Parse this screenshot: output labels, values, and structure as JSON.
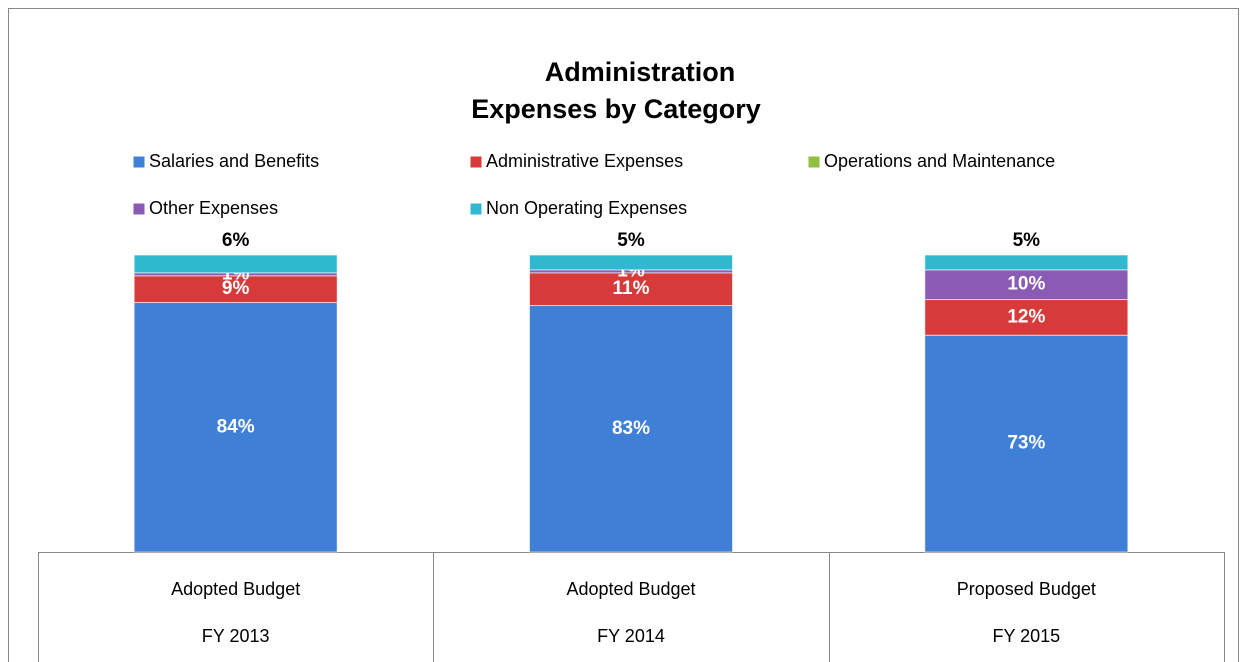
{
  "chart_data": {
    "type": "stacked-bar",
    "title": [
      "Administration",
      "Expenses by Category"
    ],
    "categories": [
      [
        "Adopted Budget",
        "FY 2013"
      ],
      [
        "Adopted Budget",
        "FY 2014"
      ],
      [
        "Proposed Budget",
        "FY 2015"
      ]
    ],
    "ylim": [
      0,
      100
    ],
    "series": [
      {
        "name": "Salaries and Benefits",
        "color": "#3f7fd6",
        "values": [
          84,
          83,
          73
        ],
        "value_labels": [
          "84%",
          "83%",
          "73%"
        ]
      },
      {
        "name": "Administrative Expenses",
        "color": "#d63a3a",
        "values": [
          9,
          11,
          12
        ],
        "value_labels": [
          "9%",
          "11%",
          "12%"
        ]
      },
      {
        "name": "Operations and Maintenance",
        "color": "#8fc13f",
        "values": [
          0,
          0,
          0
        ]
      },
      {
        "name": "Other Expenses",
        "color": "#8a5bb5",
        "values": [
          1,
          1,
          10
        ],
        "value_labels": [
          "1%",
          "1%",
          "10%"
        ]
      },
      {
        "name": "Non Operating Expenses",
        "color": "#2fb9d0",
        "values": [
          6,
          5,
          5
        ],
        "value_labels": [
          "6%",
          "5%",
          "5%"
        ]
      }
    ]
  }
}
